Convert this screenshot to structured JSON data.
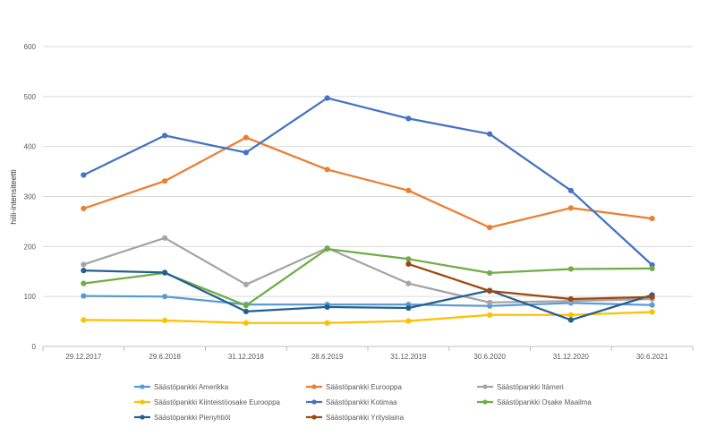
{
  "chart_data": {
    "type": "line",
    "title": "",
    "xlabel": "",
    "ylabel": "hiili-intensiteetti",
    "ylim": [
      0,
      600
    ],
    "yticks": [
      0,
      100,
      200,
      300,
      400,
      500,
      600
    ],
    "grid": true,
    "legend_position": "bottom",
    "categories": [
      "29.12.2017",
      "29.6.2018",
      "31.12.2018",
      "28.6.2019",
      "31.12.2019",
      "30.6.2020",
      "31.12.2020",
      "30.6.2021"
    ],
    "series": [
      {
        "name": "Säästöpankki Amerikka",
        "color": "#5B9BD5",
        "values": [
          101,
          100,
          84,
          84,
          84,
          81,
          87,
          83
        ]
      },
      {
        "name": "Säästöpankki Eurooppa",
        "color": "#ED7D31",
        "values": [
          276,
          331,
          418,
          354,
          312,
          238,
          277,
          256
        ]
      },
      {
        "name": "Säästöpankki Itämeri",
        "color": "#A5A5A5",
        "values": [
          164,
          217,
          124,
          197,
          126,
          88,
          91,
          95
        ]
      },
      {
        "name": "Säästöpankki Kiinteistöosake Eurooppa",
        "color": "#FFC000",
        "values": [
          53,
          52,
          47,
          47,
          51,
          63,
          63,
          69
        ]
      },
      {
        "name": "Säästöpankki Kotimaa",
        "color": "#4472C4",
        "values": [
          343,
          422,
          388,
          497,
          456,
          425,
          312,
          163
        ]
      },
      {
        "name": "Säästöpankki Osake Maailma",
        "color": "#70AD47",
        "values": [
          126,
          147,
          82,
          195,
          175,
          147,
          155,
          156
        ]
      },
      {
        "name": "Säästöpankki Pienyhtiöt",
        "color": "#255E91",
        "values": [
          152,
          148,
          70,
          79,
          77,
          112,
          53,
          103
        ]
      },
      {
        "name": "Säästöpankki Yrityslaina",
        "color": "#9E480E",
        "values": [
          null,
          null,
          null,
          null,
          165,
          111,
          95,
          99
        ]
      }
    ]
  }
}
